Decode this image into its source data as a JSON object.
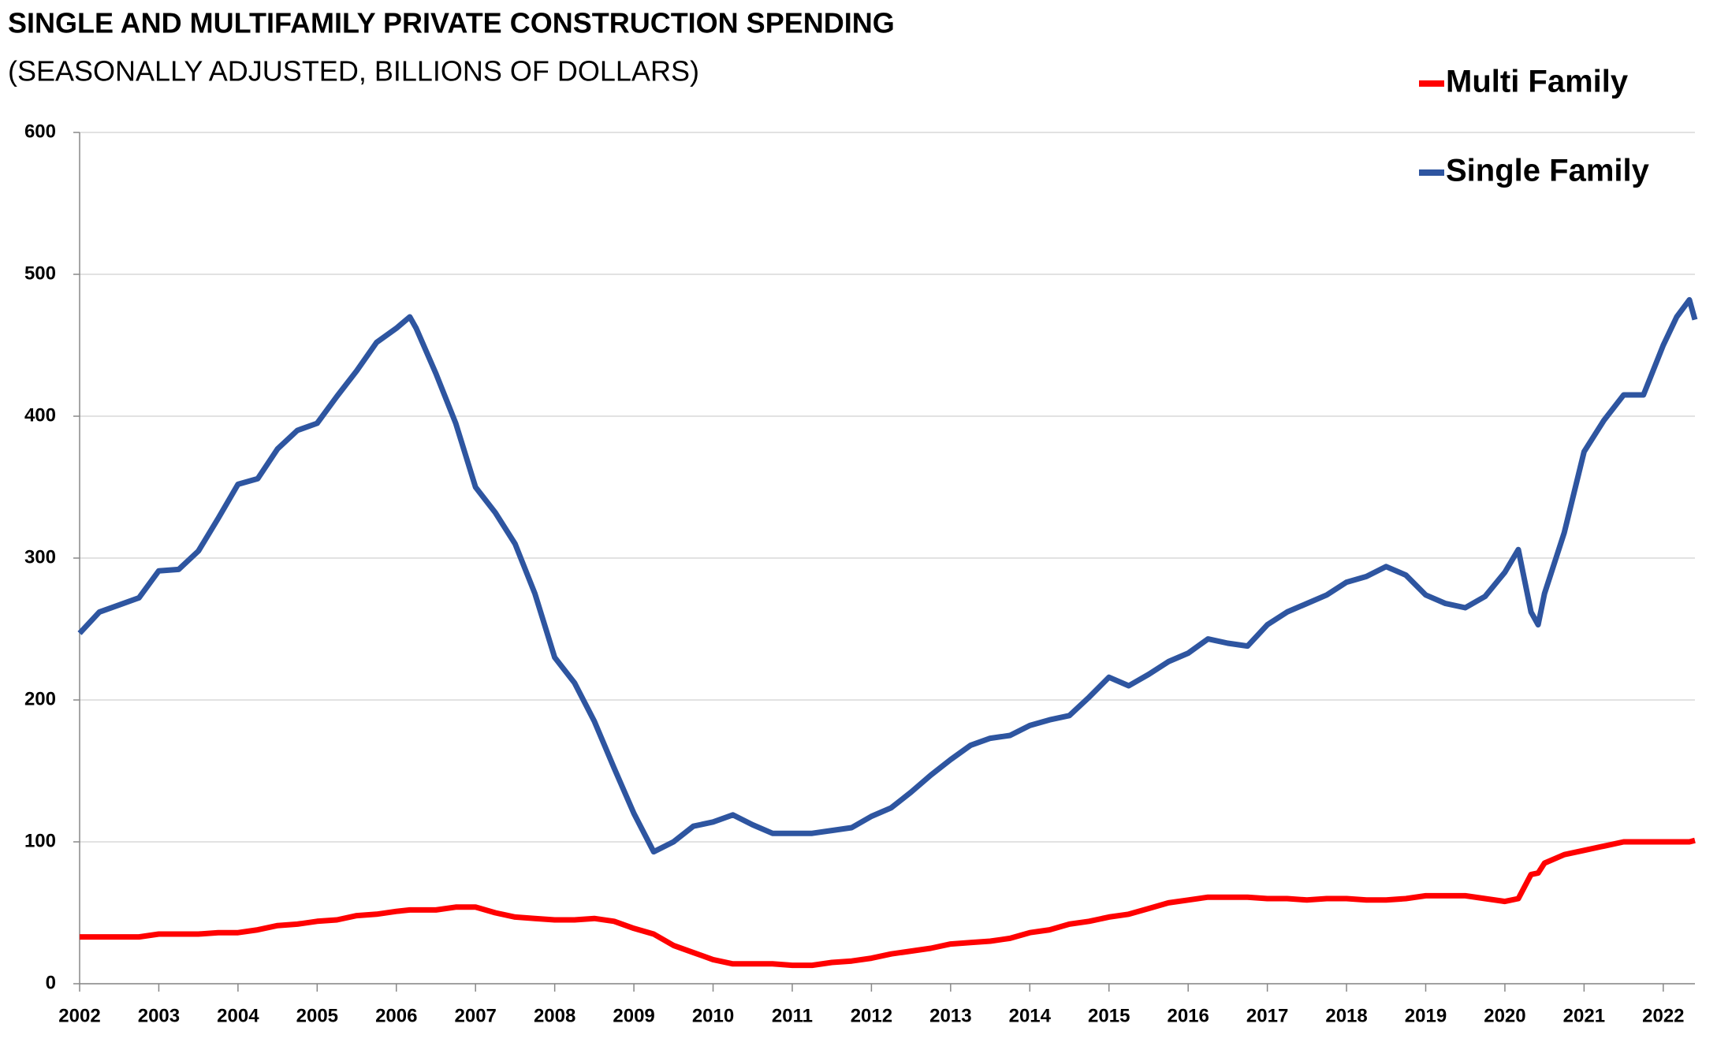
{
  "chart_data": {
    "type": "line",
    "title": "SINGLE AND MULTIFAMILY PRIVATE CONSTRUCTION SPENDING",
    "subtitle": "(SEASONALLY ADJUSTED, BILLIONS OF DOLLARS)",
    "x": [
      2002,
      2002.25,
      2002.5,
      2002.75,
      2003,
      2003.25,
      2003.5,
      2003.75,
      2004,
      2004.25,
      2004.5,
      2004.75,
      2005,
      2005.25,
      2005.5,
      2005.75,
      2006,
      2006.17,
      2006.25,
      2006.5,
      2006.75,
      2007,
      2007.25,
      2007.5,
      2007.75,
      2008,
      2008.25,
      2008.5,
      2008.75,
      2009,
      2009.25,
      2009.5,
      2009.75,
      2010,
      2010.25,
      2010.5,
      2010.75,
      2011,
      2011.25,
      2011.5,
      2011.75,
      2012,
      2012.25,
      2012.5,
      2012.75,
      2013,
      2013.25,
      2013.5,
      2013.75,
      2014,
      2014.25,
      2014.5,
      2014.75,
      2015,
      2015.25,
      2015.5,
      2015.75,
      2016,
      2016.25,
      2016.5,
      2016.75,
      2017,
      2017.25,
      2017.5,
      2017.75,
      2018,
      2018.25,
      2018.5,
      2018.75,
      2019,
      2019.25,
      2019.5,
      2019.75,
      2020,
      2020.17,
      2020.33,
      2020.42,
      2020.5,
      2020.75,
      2021,
      2021.25,
      2021.5,
      2021.75,
      2022,
      2022.17,
      2022.33,
      2022.4
    ],
    "series": [
      {
        "name": "Multi Family",
        "color": "#ff0000",
        "values": [
          33,
          33,
          33,
          33,
          35,
          35,
          35,
          36,
          36,
          38,
          41,
          42,
          44,
          45,
          48,
          49,
          51,
          52,
          52,
          52,
          54,
          54,
          50,
          47,
          46,
          45,
          45,
          46,
          44,
          39,
          35,
          27,
          22,
          17,
          14,
          14,
          14,
          13,
          13,
          15,
          16,
          18,
          21,
          23,
          25,
          28,
          29,
          30,
          32,
          36,
          38,
          42,
          44,
          47,
          49,
          53,
          57,
          59,
          61,
          61,
          61,
          60,
          60,
          59,
          60,
          60,
          59,
          59,
          60,
          62,
          62,
          62,
          60,
          58,
          60,
          77,
          78,
          85,
          91,
          94,
          97,
          100,
          100,
          100,
          100,
          100,
          101
        ]
      },
      {
        "name": "Single Family",
        "color": "#2e55a0",
        "values": [
          247,
          262,
          267,
          272,
          291,
          292,
          305,
          328,
          352,
          356,
          377,
          390,
          395,
          414,
          432,
          452,
          462,
          470,
          462,
          430,
          395,
          350,
          332,
          310,
          275,
          230,
          212,
          185,
          152,
          120,
          93,
          100,
          111,
          114,
          119,
          112,
          106,
          106,
          106,
          108,
          110,
          118,
          124,
          135,
          147,
          158,
          168,
          173,
          175,
          182,
          186,
          189,
          202,
          216,
          210,
          218,
          227,
          233,
          243,
          240,
          238,
          253,
          262,
          268,
          274,
          283,
          287,
          294,
          288,
          274,
          268,
          265,
          273,
          290,
          306,
          262,
          253,
          275,
          318,
          375,
          397,
          415,
          415,
          450,
          470,
          482,
          468
        ]
      }
    ],
    "xlim": [
      2002,
      2022.4
    ],
    "xticks": [
      2002,
      2003,
      2004,
      2005,
      2006,
      2007,
      2008,
      2009,
      2010,
      2011,
      2012,
      2013,
      2014,
      2015,
      2016,
      2017,
      2018,
      2019,
      2020,
      2021,
      2022
    ],
    "ylim": [
      0,
      600
    ],
    "yticks": [
      0,
      100,
      200,
      300,
      400,
      500,
      600
    ],
    "grid": true,
    "legend": "upper right"
  }
}
